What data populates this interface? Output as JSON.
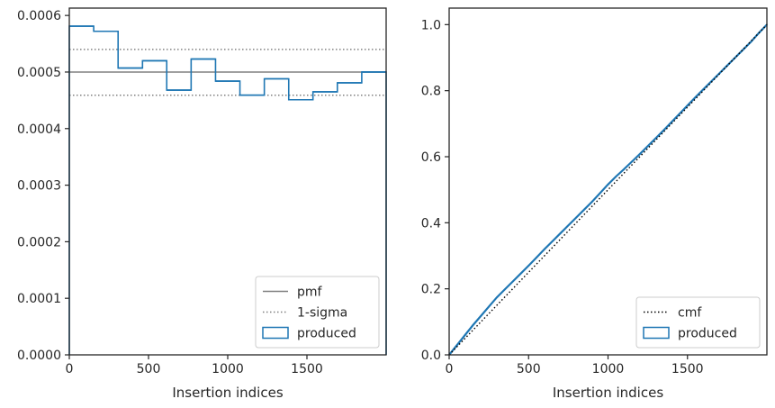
{
  "colors": {
    "produced": "#1f77b4",
    "pmf": "#808080",
    "sigma": "#808080",
    "cmf": "#000000",
    "spine": "#262626",
    "legend_border": "#cccccc"
  },
  "chart_data": [
    {
      "type": "line",
      "xlabel": "Insertion indices",
      "ylabel": "",
      "xlim": [
        0,
        2000
      ],
      "ylim": [
        0,
        0.000613
      ],
      "xticks": [
        0,
        500,
        1000,
        1500
      ],
      "xtick_labels": [
        "0",
        "500",
        "1000",
        "1500"
      ],
      "yticks": [
        0,
        0.0001,
        0.0002,
        0.0003,
        0.0004,
        0.0005,
        0.0006
      ],
      "ytick_labels": [
        "0.0000",
        "0.0001",
        "0.0002",
        "0.0003",
        "0.0004",
        "0.0005",
        "0.0006"
      ],
      "legend_position": "lower-right",
      "legend": [
        "pmf",
        "1-sigma",
        "produced"
      ],
      "pmf": 0.0005,
      "sigma_upper": 0.00054,
      "sigma_lower": 0.000459,
      "produced_bins": [
        {
          "x0": 0,
          "x1": 154,
          "y": 0.000581
        },
        {
          "x0": 154,
          "x1": 308,
          "y": 0.000572
        },
        {
          "x0": 308,
          "x1": 462,
          "y": 0.000507
        },
        {
          "x0": 462,
          "x1": 615,
          "y": 0.00052
        },
        {
          "x0": 615,
          "x1": 769,
          "y": 0.000468
        },
        {
          "x0": 769,
          "x1": 923,
          "y": 0.000523
        },
        {
          "x0": 923,
          "x1": 1077,
          "y": 0.000484
        },
        {
          "x0": 1077,
          "x1": 1231,
          "y": 0.000459
        },
        {
          "x0": 1231,
          "x1": 1385,
          "y": 0.000488
        },
        {
          "x0": 1385,
          "x1": 1538,
          "y": 0.000451
        },
        {
          "x0": 1538,
          "x1": 1692,
          "y": 0.000465
        },
        {
          "x0": 1692,
          "x1": 1846,
          "y": 0.000481
        },
        {
          "x0": 1846,
          "x1": 2000,
          "y": 0.0005
        }
      ]
    },
    {
      "type": "line",
      "xlabel": "Insertion indices",
      "ylabel": "",
      "xlim": [
        0,
        2000
      ],
      "ylim": [
        0,
        1.05
      ],
      "xticks": [
        0,
        500,
        1000,
        1500
      ],
      "xtick_labels": [
        "0",
        "500",
        "1000",
        "1500"
      ],
      "yticks": [
        0,
        0.2,
        0.4,
        0.6,
        0.8,
        1.0
      ],
      "ytick_labels": [
        "0.0",
        "0.2",
        "0.4",
        "0.6",
        "0.8",
        "1.0"
      ],
      "legend_position": "lower-right",
      "legend": [
        "cmf",
        "produced"
      ],
      "cmf": {
        "x": [
          0,
          2000
        ],
        "y": [
          0,
          1.0
        ]
      },
      "produced": {
        "x": [
          0,
          50,
          100,
          150,
          200,
          250,
          300,
          350,
          400,
          450,
          500,
          550,
          600,
          650,
          700,
          750,
          800,
          850,
          900,
          950,
          1000,
          1050,
          1100,
          1150,
          1200,
          1250,
          1300,
          1350,
          1400,
          1450,
          1500,
          1550,
          1600,
          1650,
          1700,
          1750,
          1800,
          1850,
          1900,
          1950,
          2000
        ],
        "y": [
          0,
          0.03,
          0.06,
          0.09,
          0.118,
          0.146,
          0.174,
          0.198,
          0.222,
          0.246,
          0.27,
          0.295,
          0.32,
          0.344,
          0.368,
          0.392,
          0.416,
          0.44,
          0.464,
          0.49,
          0.516,
          0.54,
          0.562,
          0.585,
          0.608,
          0.632,
          0.656,
          0.68,
          0.705,
          0.73,
          0.755,
          0.78,
          0.804,
          0.828,
          0.852,
          0.876,
          0.9,
          0.924,
          0.948,
          0.975,
          1.0
        ]
      }
    }
  ]
}
